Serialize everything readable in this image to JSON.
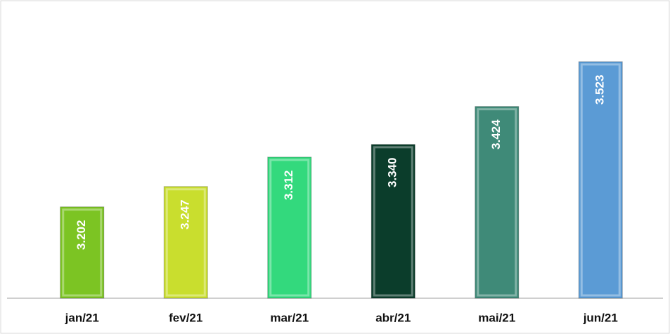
{
  "chart_data": {
    "type": "bar",
    "categories": [
      "jan/21",
      "fev/21",
      "mar/21",
      "abr/21",
      "mai/21",
      "jun/21"
    ],
    "values": [
      3202,
      3247,
      3312,
      3340,
      3424,
      3523
    ],
    "value_labels": [
      "3.202",
      "3.247",
      "3.312",
      "3.340",
      "3.424",
      "3.523"
    ],
    "colors": [
      "#7cc423",
      "#c9de2e",
      "#33d97d",
      "#0b3d2b",
      "#3f8a78",
      "#5b9bd5"
    ],
    "ylim": [
      3000,
      3650
    ]
  }
}
